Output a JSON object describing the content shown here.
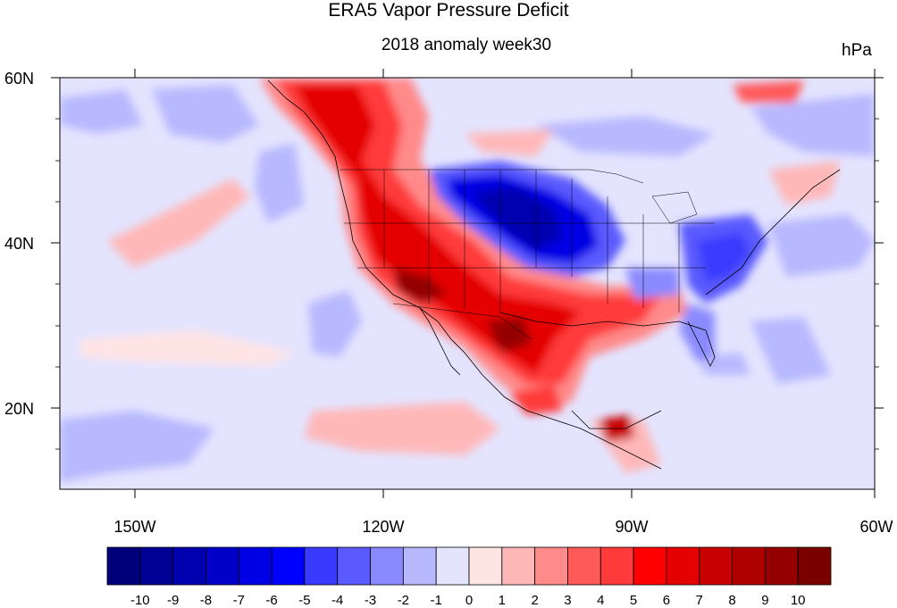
{
  "title": "ERA5 Vapor Pressure Deficit",
  "subtitle": "2018 anomaly week30",
  "units": "hPa",
  "map": {
    "x_ticks": [
      "150W",
      "120W",
      "90W",
      "60W"
    ],
    "y_ticks": [
      "60N",
      "40N",
      "20N"
    ],
    "lon_range": [
      -159,
      -60
    ],
    "lat_range": [
      10,
      60
    ]
  },
  "colorbar": {
    "labels": [
      "-10",
      "-9",
      "-8",
      "-7",
      "-6",
      "-5",
      "-4",
      "-3",
      "-2",
      "-1",
      "0",
      "1",
      "2",
      "3",
      "4",
      "5",
      "6",
      "7",
      "8",
      "9",
      "10"
    ],
    "colors": [
      "#00007a",
      "#000094",
      "#0000ae",
      "#0000c8",
      "#0000e4",
      "#0000ff",
      "#3a3aff",
      "#5a5aff",
      "#8a8aff",
      "#b8b8ff",
      "#e4e4ff",
      "#ffe4e4",
      "#ffb8b8",
      "#ff8a8a",
      "#ff5a5a",
      "#ff3a3a",
      "#ff0000",
      "#e40000",
      "#c80000",
      "#ae0000",
      "#940000",
      "#7a0000"
    ]
  }
}
